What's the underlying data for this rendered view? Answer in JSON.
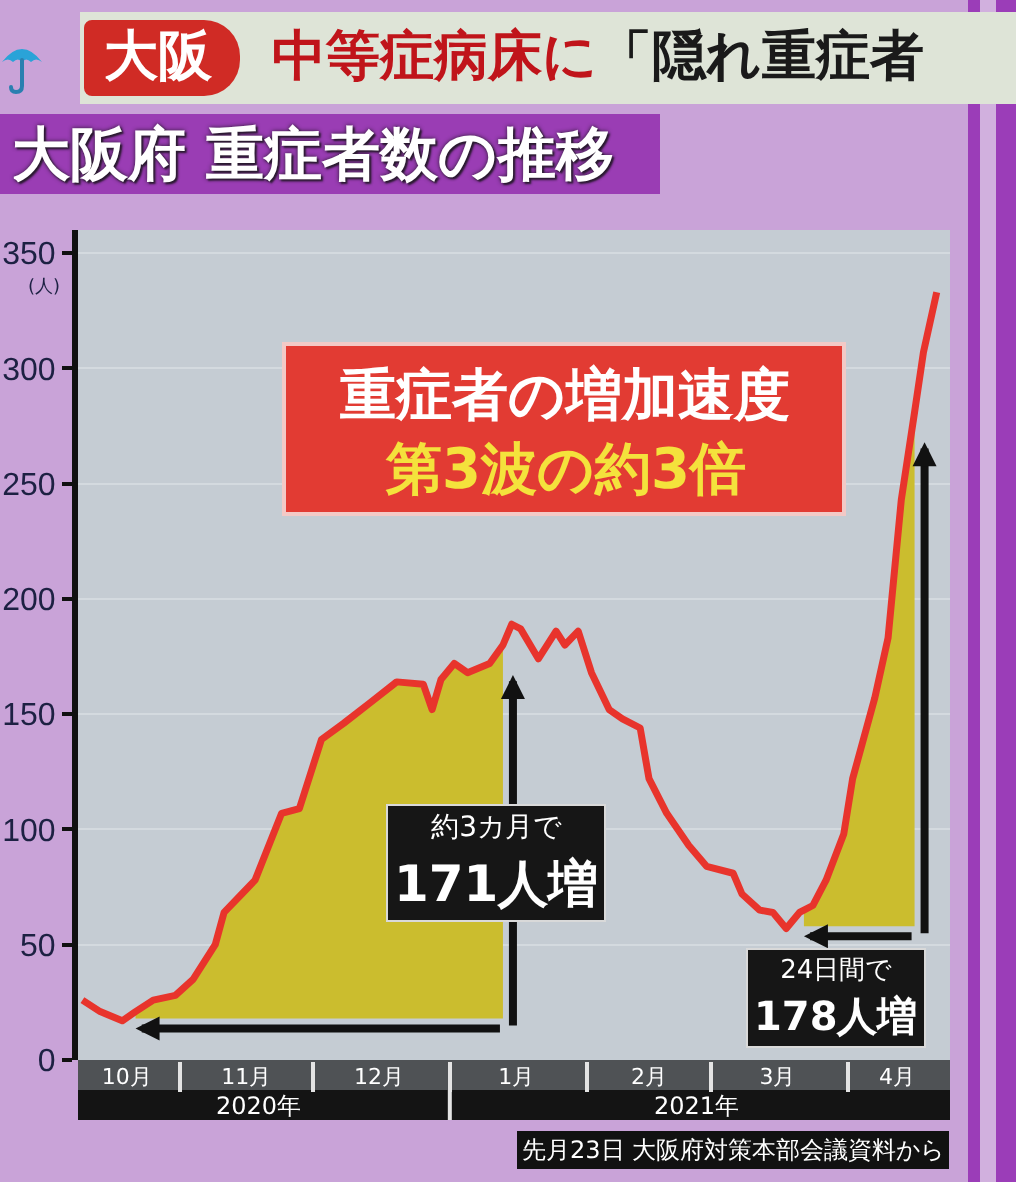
{
  "chart_data": {
    "type": "line",
    "title": "大阪府 重症者数の推移",
    "ylabel": "(人)",
    "annotations": [
      "大阪",
      "中等症病床に",
      "「隠れ重症者",
      "重症者の増加速度",
      "第3波の約3倍",
      "約3カ月で\n171人増",
      "24日間で\n178人増",
      "先月23日 大阪府対策本部会議資料から"
    ],
    "x": [
      "2020-10-10",
      "2020-10-14",
      "2020-10-19",
      "2020-10-22",
      "2020-10-26",
      "2020-10-31",
      "2020-11-04",
      "2020-11-09",
      "2020-11-11",
      "2020-11-15",
      "2020-11-18",
      "2020-11-24",
      "2020-11-28",
      "2020-12-03",
      "2020-12-08",
      "2020-12-14",
      "2020-12-20",
      "2020-12-26",
      "2020-12-28",
      "2020-12-30",
      "2021-01-02",
      "2021-01-05",
      "2021-01-10",
      "2021-01-13",
      "2021-01-15",
      "2021-01-17",
      "2021-01-21",
      "2021-01-25",
      "2021-01-27",
      "2021-01-30",
      "2021-02-02",
      "2021-02-06",
      "2021-02-09",
      "2021-02-13",
      "2021-02-15",
      "2021-02-19",
      "2021-02-24",
      "2021-02-28",
      "2021-03-06",
      "2021-03-08",
      "2021-03-12",
      "2021-03-15",
      "2021-03-18",
      "2021-03-21",
      "2021-03-22",
      "2021-03-24",
      "2021-03-27",
      "2021-03-31",
      "2021-04-02",
      "2021-04-07",
      "2021-04-10",
      "2021-04-13",
      "2021-04-16",
      "2021-04-18",
      "2021-04-21"
    ],
    "series": [
      {
        "color": "#e8342c",
        "values": [
          26,
          21,
          17,
          21,
          26,
          28,
          35,
          50,
          64,
          72,
          78,
          107,
          109,
          139,
          146,
          155,
          164,
          163,
          152,
          165,
          172,
          168,
          172,
          180,
          189,
          187,
          174,
          186,
          180,
          186,
          168,
          152,
          148,
          144,
          122,
          107,
          93,
          84,
          81,
          72,
          65,
          64,
          57,
          64,
          65,
          67,
          78,
          98,
          122,
          157,
          183,
          243,
          281,
          307,
          333
        ],
        "lower": [
          null,
          null,
          null,
          18,
          18,
          18,
          18,
          18,
          18,
          18,
          18,
          18,
          18,
          18,
          18,
          18,
          18,
          18,
          18,
          18,
          18,
          18,
          18,
          18,
          null,
          null,
          null,
          null,
          null,
          null,
          null,
          null,
          null,
          null,
          null,
          null,
          null,
          null,
          null,
          null,
          null,
          null,
          null,
          null,
          58,
          58,
          58,
          58,
          58,
          58,
          58,
          58,
          58,
          null,
          null
        ],
        "upper": [
          null,
          null,
          null,
          21,
          26,
          28,
          35,
          50,
          64,
          72,
          78,
          107,
          109,
          139,
          146,
          155,
          164,
          163,
          152,
          165,
          172,
          168,
          172,
          180,
          null,
          null,
          null,
          null,
          null,
          null,
          null,
          null,
          null,
          null,
          null,
          null,
          null,
          null,
          null,
          null,
          null,
          null,
          null,
          null,
          65,
          67,
          78,
          98,
          122,
          157,
          183,
          243,
          281,
          null,
          null
        ]
      }
    ],
    "xlim": [
      "2020-10-09",
      "2021-04-24"
    ],
    "xticks": [
      {
        "value": "2020-10-20",
        "label": "10月"
      },
      {
        "value": "2020-11-01",
        "label": null
      },
      {
        "value": "2020-11-16",
        "label": "11月"
      },
      {
        "value": "2020-12-01",
        "label": null
      },
      {
        "value": "2020-12-16",
        "label": "12月"
      },
      {
        "value": "2021-01-01",
        "label": null
      },
      {
        "value": "2021-01-16",
        "label": "1月"
      },
      {
        "value": "2021-02-01",
        "label": null
      },
      {
        "value": "2021-02-15",
        "label": "2月"
      },
      {
        "value": "2021-03-01",
        "label": null
      },
      {
        "value": "2021-03-16",
        "label": "3月"
      },
      {
        "value": "2021-04-01",
        "label": null
      },
      {
        "value": "2021-04-12",
        "label": "4月"
      }
    ],
    "x2lim": [
      "2020-10-09",
      "2021-04-24"
    ],
    "x2ticks": [
      {
        "value": "2020-11-19",
        "label": "2020年"
      },
      {
        "value": "2021-01-01",
        "label": null
      },
      {
        "value": "2021-02-26",
        "label": "2021年"
      }
    ],
    "ylim": [
      0,
      360
    ],
    "yticks": [
      0,
      50,
      100,
      150,
      200,
      250,
      300,
      350
    ],
    "grid": "y",
    "line_style": "solid"
  }
}
